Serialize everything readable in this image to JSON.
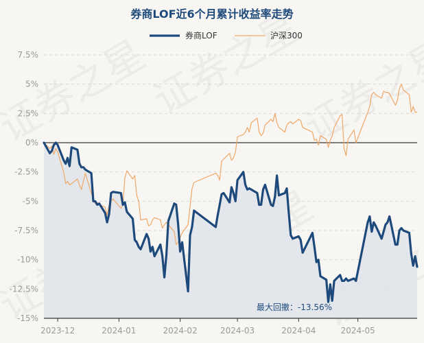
{
  "chart_data": {
    "type": "line",
    "title": "券商LOF近6个月累计收益率走势",
    "xlabel": "",
    "ylabel": "",
    "x_tick_labels": [
      "2023-12",
      "2024-01",
      "2024-02",
      "2024-03",
      "2024-04",
      "2024-05"
    ],
    "x_tick_dates": [
      "2023-12-01",
      "2024-01-01",
      "2024-02-01",
      "2024-03-01",
      "2024-04-01",
      "2024-05-01"
    ],
    "x_range": [
      "2023-11-24",
      "2024-05-31"
    ],
    "y_tick_labels": [
      "7.5%",
      "5%",
      "2.5%",
      "0%",
      "-2.5%",
      "-5%",
      "-7.5%",
      "-10%",
      "-12.5%",
      "-15%"
    ],
    "ylim": [
      -15,
      7.5
    ],
    "y_unit": "%",
    "grid": "horizontal dashed",
    "legend_position": "top-center",
    "watermark": "证券之星",
    "annotation": "最大回撤：-13.56%",
    "colors": {
      "fund": "#1e4a7b",
      "index": "#f0a868",
      "area": "#dfe4ea",
      "title": "#1e4a7b",
      "axis": "#333333",
      "tick": "#999999",
      "grid": "#d8d8d8"
    },
    "series": [
      {
        "name": "券商LOF",
        "style": "thick",
        "x": [
          "2023-11-24",
          "2023-11-27",
          "2023-11-28",
          "2023-11-29",
          "2023-11-30",
          "2023-12-01",
          "2023-12-04",
          "2023-12-05",
          "2023-12-06",
          "2023-12-07",
          "2023-12-08",
          "2023-12-11",
          "2023-12-12",
          "2023-12-13",
          "2023-12-14",
          "2023-12-15",
          "2023-12-18",
          "2023-12-19",
          "2023-12-20",
          "2023-12-21",
          "2023-12-22",
          "2023-12-25",
          "2023-12-26",
          "2023-12-27",
          "2023-12-28",
          "2023-12-29",
          "2024-01-02",
          "2024-01-03",
          "2024-01-04",
          "2024-01-05",
          "2024-01-08",
          "2024-01-09",
          "2024-01-10",
          "2024-01-11",
          "2024-01-12",
          "2024-01-15",
          "2024-01-16",
          "2024-01-17",
          "2024-01-18",
          "2024-01-19",
          "2024-01-22",
          "2024-01-23",
          "2024-01-24",
          "2024-01-25",
          "2024-01-26",
          "2024-01-29",
          "2024-01-30",
          "2024-01-31",
          "2024-02-01",
          "2024-02-02",
          "2024-02-05",
          "2024-02-06",
          "2024-02-07",
          "2024-02-08",
          "2024-02-19",
          "2024-02-20",
          "2024-02-21",
          "2024-02-22",
          "2024-02-23",
          "2024-02-26",
          "2024-02-27",
          "2024-02-28",
          "2024-02-29",
          "2024-03-01",
          "2024-03-04",
          "2024-03-05",
          "2024-03-06",
          "2024-03-07",
          "2024-03-08",
          "2024-03-11",
          "2024-03-12",
          "2024-03-13",
          "2024-03-14",
          "2024-03-15",
          "2024-03-18",
          "2024-03-19",
          "2024-03-20",
          "2024-03-21",
          "2024-03-22",
          "2024-03-25",
          "2024-03-26",
          "2024-03-27",
          "2024-03-28",
          "2024-03-29",
          "2024-04-01",
          "2024-04-02",
          "2024-04-03",
          "2024-04-08",
          "2024-04-09",
          "2024-04-10",
          "2024-04-11",
          "2024-04-12",
          "2024-04-15",
          "2024-04-16",
          "2024-04-17",
          "2024-04-18",
          "2024-04-19",
          "2024-04-22",
          "2024-04-23",
          "2024-04-24",
          "2024-04-25",
          "2024-04-26",
          "2024-04-29",
          "2024-04-30",
          "2024-05-06",
          "2024-05-07",
          "2024-05-08",
          "2024-05-09",
          "2024-05-10",
          "2024-05-13",
          "2024-05-14",
          "2024-05-15",
          "2024-05-16",
          "2024-05-17",
          "2024-05-20",
          "2024-05-21",
          "2024-05-22",
          "2024-05-23",
          "2024-05-24",
          "2024-05-27",
          "2024-05-28",
          "2024-05-29",
          "2024-05-30",
          "2024-05-31"
        ],
        "values": [
          0,
          -0.9,
          -0.7,
          -0.2,
          0.0,
          -0.2,
          -1.5,
          -1.8,
          -1.3,
          -2.0,
          -0.4,
          -0.6,
          -1.8,
          -2.1,
          -2.1,
          -2.3,
          -2.6,
          -5.0,
          -5.0,
          -5.3,
          -5.2,
          -6.0,
          -6.8,
          -6.1,
          -4.3,
          -4.2,
          -4.3,
          -5.3,
          -5.1,
          -5.9,
          -6.5,
          -8.3,
          -8.5,
          -8.9,
          -9.1,
          -7.8,
          -8.2,
          -9.3,
          -8.9,
          -9.7,
          -8.7,
          -9.7,
          -11.5,
          -9.6,
          -6.7,
          -5.2,
          -5.3,
          -7.0,
          -9.3,
          -8.5,
          -12.7,
          -7.9,
          -7.2,
          -5.8,
          -7.2,
          -6.2,
          -5.3,
          -4.4,
          -4.3,
          -5.1,
          -3.8,
          -4.3,
          -5.0,
          -3.2,
          -2.5,
          -3.6,
          -4.0,
          -3.9,
          -4.0,
          -4.3,
          -5.3,
          -5.3,
          -4.0,
          -3.6,
          -5.3,
          -5.4,
          -4.6,
          -2.8,
          -4.5,
          -4.3,
          -3.9,
          -6.0,
          -7.9,
          -8.2,
          -8.0,
          -8.3,
          -9.4,
          -7.7,
          -8.9,
          -10.2,
          -10.0,
          -11.4,
          -11.7,
          -13.6,
          -12.1,
          -13.5,
          -11.8,
          -11.3,
          -11.8,
          -11.8,
          -11.6,
          -11.8,
          -11.6,
          -11.8,
          -6.8,
          -6.3,
          -7.6,
          -6.8,
          -7.1,
          -8.2,
          -7.6,
          -7.0,
          -6.8,
          -6.3,
          -8.7,
          -8.7,
          -7.5,
          -7.3,
          -7.5,
          -7.7,
          -9.5,
          -10.5,
          -9.7,
          -10.6
        ]
      },
      {
        "name": "沪深300",
        "style": "thin",
        "x": [
          "2023-11-24",
          "2023-11-27",
          "2023-11-28",
          "2023-11-29",
          "2023-11-30",
          "2023-12-01",
          "2023-12-04",
          "2023-12-05",
          "2023-12-06",
          "2023-12-07",
          "2023-12-08",
          "2023-12-11",
          "2023-12-12",
          "2023-12-13",
          "2023-12-14",
          "2023-12-15",
          "2023-12-18",
          "2023-12-19",
          "2023-12-20",
          "2023-12-21",
          "2023-12-22",
          "2023-12-25",
          "2023-12-26",
          "2023-12-27",
          "2023-12-28",
          "2023-12-29",
          "2024-01-02",
          "2024-01-03",
          "2024-01-04",
          "2024-01-05",
          "2024-01-08",
          "2024-01-09",
          "2024-01-10",
          "2024-01-11",
          "2024-01-12",
          "2024-01-15",
          "2024-01-16",
          "2024-01-17",
          "2024-01-18",
          "2024-01-19",
          "2024-01-22",
          "2024-01-23",
          "2024-01-24",
          "2024-01-25",
          "2024-01-26",
          "2024-01-29",
          "2024-01-30",
          "2024-01-31",
          "2024-02-01",
          "2024-02-02",
          "2024-02-05",
          "2024-02-06",
          "2024-02-07",
          "2024-02-08",
          "2024-02-19",
          "2024-02-20",
          "2024-02-21",
          "2024-02-22",
          "2024-02-23",
          "2024-02-26",
          "2024-02-27",
          "2024-02-28",
          "2024-02-29",
          "2024-03-01",
          "2024-03-04",
          "2024-03-05",
          "2024-03-06",
          "2024-03-07",
          "2024-03-08",
          "2024-03-11",
          "2024-03-12",
          "2024-03-13",
          "2024-03-14",
          "2024-03-15",
          "2024-03-18",
          "2024-03-19",
          "2024-03-20",
          "2024-03-21",
          "2024-03-22",
          "2024-03-25",
          "2024-03-26",
          "2024-03-27",
          "2024-03-28",
          "2024-03-29",
          "2024-04-01",
          "2024-04-02",
          "2024-04-03",
          "2024-04-08",
          "2024-04-09",
          "2024-04-10",
          "2024-04-11",
          "2024-04-12",
          "2024-04-15",
          "2024-04-16",
          "2024-04-17",
          "2024-04-18",
          "2024-04-19",
          "2024-04-22",
          "2024-04-23",
          "2024-04-24",
          "2024-04-25",
          "2024-04-26",
          "2024-04-29",
          "2024-04-30",
          "2024-05-06",
          "2024-05-07",
          "2024-05-08",
          "2024-05-09",
          "2024-05-10",
          "2024-05-13",
          "2024-05-14",
          "2024-05-15",
          "2024-05-16",
          "2024-05-17",
          "2024-05-20",
          "2024-05-21",
          "2024-05-22",
          "2024-05-23",
          "2024-05-24",
          "2024-05-27",
          "2024-05-28",
          "2024-05-29",
          "2024-05-30",
          "2024-05-31"
        ],
        "values": [
          0,
          -0.5,
          -0.3,
          -1.0,
          -0.5,
          -0.8,
          -2.5,
          -3.5,
          -3.3,
          -3.6,
          -3.5,
          -3.1,
          -3.6,
          -4.0,
          -3.3,
          -2.6,
          -4.3,
          -4.8,
          -5.2,
          -5.1,
          -5.3,
          -5.5,
          -6.2,
          -5.3,
          -5.0,
          -4.8,
          -5.6,
          -5.3,
          -3.0,
          -2.4,
          -3.1,
          -2.8,
          -4.5,
          -5.0,
          -6.6,
          -6.5,
          -7.1,
          -7.0,
          -6.6,
          -6.4,
          -6.6,
          -7.3,
          -7.0,
          -6.8,
          -7.0,
          -7.6,
          -8.7,
          -8.5,
          -8.1,
          -7.7,
          -7.0,
          -5.5,
          -3.9,
          -3.4,
          -2.6,
          -2.8,
          -3.2,
          -1.6,
          -1.4,
          -0.9,
          -1.5,
          -1.3,
          -0.8,
          0.5,
          0.7,
          0.9,
          1.3,
          0.9,
          1.7,
          2.1,
          0.9,
          0.6,
          0.8,
          1.5,
          2.0,
          1.8,
          2.5,
          1.7,
          1.3,
          0.9,
          1.5,
          1.7,
          1.8,
          1.6,
          2.0,
          1.9,
          1.3,
          0.9,
          0.2,
          0.3,
          -0.2,
          0.6,
          0.3,
          -0.4,
          0.2,
          0.6,
          1.3,
          2.3,
          2.4,
          -0.5,
          -1.1,
          0.3,
          1.1,
          0.0,
          2.6,
          3.1,
          4.1,
          4.3,
          4.1,
          3.8,
          4.4,
          4.3,
          4.3,
          4.2,
          3.2,
          3.6,
          4.6,
          5.0,
          4.5,
          4.1,
          2.6,
          3.1,
          2.6,
          2.6
        ]
      }
    ]
  }
}
